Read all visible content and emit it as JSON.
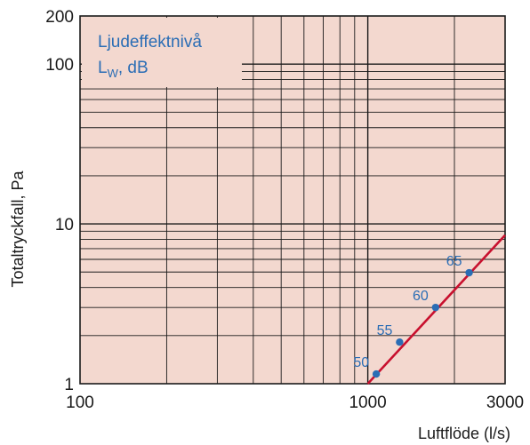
{
  "chart_data": {
    "type": "line",
    "xscale": "log",
    "yscale": "log",
    "xlim": [
      100,
      3000
    ],
    "ylim": [
      1,
      200
    ],
    "xticks": [
      100,
      1000,
      3000
    ],
    "xtick_labels": [
      "100",
      "1000",
      "3000"
    ],
    "yticks": [
      1,
      10,
      100,
      200
    ],
    "ytick_labels": [
      "1",
      "10",
      "100",
      "200"
    ],
    "xlabel": "Luftflöde (l/s)",
    "ylabel": "Totaltryckfall, Pa",
    "legend": {
      "line1": "Ljudeffektnivå",
      "line2_main": "L",
      "line2_sub": "W",
      "line2_rest": ", dB"
    },
    "grid": true,
    "series": [
      {
        "x": [
          1000,
          3000
        ],
        "y": [
          1.0,
          8.5
        ],
        "color": "#c8102e"
      }
    ],
    "points": [
      {
        "x": 1070,
        "y": 1.15,
        "label": "50"
      },
      {
        "x": 1290,
        "y": 1.82,
        "label": "55"
      },
      {
        "x": 1720,
        "y": 3.0,
        "label": "60"
      },
      {
        "x": 2250,
        "y": 4.95,
        "label": "65"
      }
    ],
    "colors": {
      "plot_background": "#f3d8cf",
      "grid": "#1a1a1a",
      "curve": "#c8102e",
      "points": "#2a6db5",
      "legend_text": "#2a6db5"
    }
  }
}
